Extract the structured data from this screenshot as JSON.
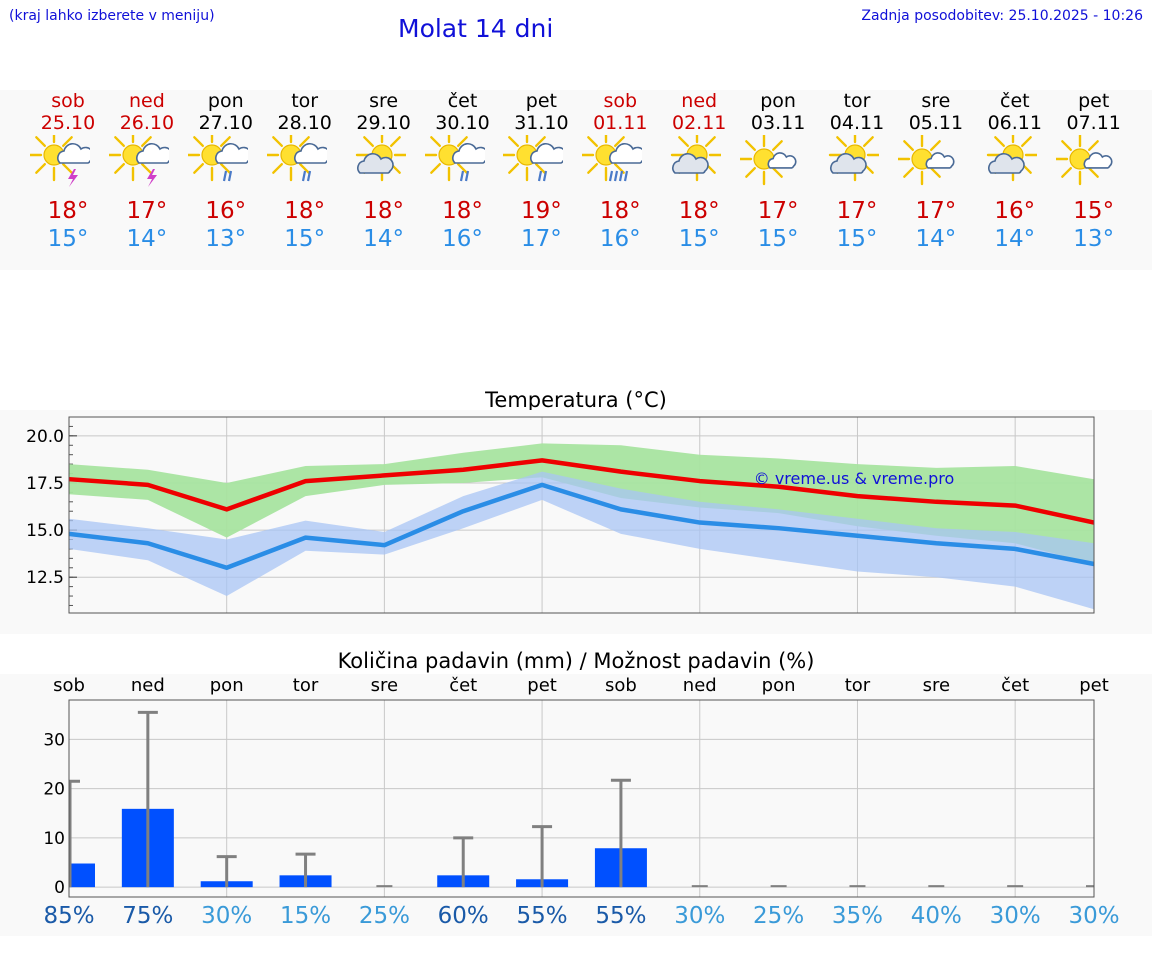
{
  "header": {
    "note": "(kraj lahko izberete v meniju)",
    "title": "Molat 14 dni",
    "updated": "Zadnja posodobitev: 25.10.2025 - 10:26"
  },
  "colors": {
    "link_blue": "#1010d8",
    "max_red": "#ee0000",
    "min_blue": "#2a8de6",
    "max_band": "#a8e4a0",
    "min_band": "#a8c4f4",
    "bar_blue": "#0050ff",
    "whisker_gray": "#808080"
  },
  "days": [
    {
      "name": "sob",
      "date": "25.10",
      "weekend": true,
      "icon": "sun-cloud-thunder-icon",
      "tmax": "18°",
      "tmin": "15°"
    },
    {
      "name": "ned",
      "date": "26.10",
      "weekend": true,
      "icon": "sun-cloud-thunder-icon",
      "tmax": "17°",
      "tmin": "14°"
    },
    {
      "name": "pon",
      "date": "27.10",
      "weekend": false,
      "icon": "sun-cloud-rain-icon",
      "tmax": "16°",
      "tmin": "13°"
    },
    {
      "name": "tor",
      "date": "28.10",
      "weekend": false,
      "icon": "sun-cloud-rain-icon",
      "tmax": "18°",
      "tmin": "15°"
    },
    {
      "name": "sre",
      "date": "29.10",
      "weekend": false,
      "icon": "sun-behind-cloud-icon",
      "tmax": "18°",
      "tmin": "14°"
    },
    {
      "name": "čet",
      "date": "30.10",
      "weekend": false,
      "icon": "sun-cloud-rain-icon",
      "tmax": "18°",
      "tmin": "16°"
    },
    {
      "name": "pet",
      "date": "31.10",
      "weekend": false,
      "icon": "sun-cloud-rain-icon",
      "tmax": "19°",
      "tmin": "17°"
    },
    {
      "name": "sob",
      "date": "01.11",
      "weekend": true,
      "icon": "sun-cloud-heavy-rain-icon",
      "tmax": "18°",
      "tmin": "16°"
    },
    {
      "name": "ned",
      "date": "02.11",
      "weekend": true,
      "icon": "sun-behind-cloud-icon",
      "tmax": "18°",
      "tmin": "15°"
    },
    {
      "name": "pon",
      "date": "03.11",
      "weekend": false,
      "icon": "sun-small-cloud-icon",
      "tmax": "17°",
      "tmin": "15°"
    },
    {
      "name": "tor",
      "date": "04.11",
      "weekend": false,
      "icon": "sun-behind-cloud-icon",
      "tmax": "17°",
      "tmin": "15°"
    },
    {
      "name": "sre",
      "date": "05.11",
      "weekend": false,
      "icon": "sun-small-cloud-icon",
      "tmax": "17°",
      "tmin": "14°"
    },
    {
      "name": "čet",
      "date": "06.11",
      "weekend": false,
      "icon": "sun-behind-cloud-icon",
      "tmax": "16°",
      "tmin": "14°"
    },
    {
      "name": "pet",
      "date": "07.11",
      "weekend": false,
      "icon": "sun-small-cloud-icon",
      "tmax": "15°",
      "tmin": "13°"
    }
  ],
  "temperature_chart": {
    "title": "Temperatura (°C)",
    "watermark": "© vreme.us & vreme.pro"
  },
  "precip_chart": {
    "title": "Količina padavin (mm) / Možnost padavin (%)"
  },
  "chart_data": [
    {
      "type": "line",
      "title": "Temperatura (°C)",
      "x": [
        0,
        1,
        2,
        3,
        4,
        5,
        6,
        7,
        8,
        9,
        10,
        11,
        12,
        13
      ],
      "ylim": [
        10.6,
        21.0
      ],
      "yticks": [
        "12.5",
        "15.0",
        "17.5",
        "20.0"
      ],
      "ytick_values": [
        12.5,
        15.0,
        17.5,
        20.0
      ],
      "grid": true,
      "series": [
        {
          "values": [
            17.7,
            17.4,
            16.1,
            17.6,
            17.9,
            18.2,
            18.7,
            18.1,
            17.6,
            17.3,
            16.8,
            16.5,
            16.3,
            15.4
          ],
          "band_high": [
            18.5,
            18.2,
            17.5,
            18.4,
            18.5,
            19.1,
            19.6,
            19.5,
            19.0,
            18.8,
            18.5,
            18.3,
            18.4,
            17.7
          ],
          "band_low": [
            16.9,
            16.6,
            14.6,
            16.8,
            17.4,
            17.5,
            17.8,
            16.7,
            16.2,
            15.9,
            15.2,
            14.7,
            14.3,
            13.2
          ]
        },
        {
          "values": [
            14.8,
            14.3,
            13.0,
            14.6,
            14.2,
            16.0,
            17.4,
            16.1,
            15.4,
            15.1,
            14.7,
            14.3,
            14.0,
            13.2
          ],
          "band_high": [
            15.6,
            15.1,
            14.5,
            15.5,
            14.9,
            16.8,
            18.1,
            17.2,
            16.5,
            16.1,
            15.6,
            15.1,
            14.9,
            14.3
          ],
          "band_low": [
            14.0,
            13.4,
            11.5,
            13.9,
            13.7,
            15.1,
            16.6,
            14.8,
            14.0,
            13.4,
            12.8,
            12.5,
            12.0,
            10.8
          ]
        }
      ]
    },
    {
      "type": "bar",
      "title": "Količina padavin (mm) / Možnost padavin (%)",
      "categories": [
        "sob",
        "ned",
        "pon",
        "tor",
        "sre",
        "čet",
        "pet",
        "sob",
        "ned",
        "pon",
        "tor",
        "sre",
        "čet",
        "pet"
      ],
      "values": [
        4.8,
        15.9,
        1.2,
        2.4,
        0,
        2.4,
        1.6,
        7.9,
        0,
        0,
        0,
        0,
        0,
        0
      ],
      "whisker_high": [
        21.5,
        35.5,
        6.2,
        6.7,
        0,
        10.0,
        12.3,
        21.7,
        0,
        0,
        0,
        0,
        0,
        0
      ],
      "probability": [
        "85%",
        "75%",
        "30%",
        "15%",
        "25%",
        "60%",
        "55%",
        "55%",
        "30%",
        "25%",
        "35%",
        "40%",
        "30%",
        "30%"
      ],
      "probability_level": [
        "high",
        "high",
        "low",
        "low",
        "low",
        "high",
        "high",
        "high",
        "low",
        "low",
        "low",
        "low",
        "low",
        "low"
      ],
      "ylim": [
        -2,
        38
      ],
      "yticks": [
        "0",
        "10",
        "20",
        "30"
      ],
      "ytick_values": [
        0,
        10,
        20,
        30
      ],
      "grid": true
    }
  ]
}
